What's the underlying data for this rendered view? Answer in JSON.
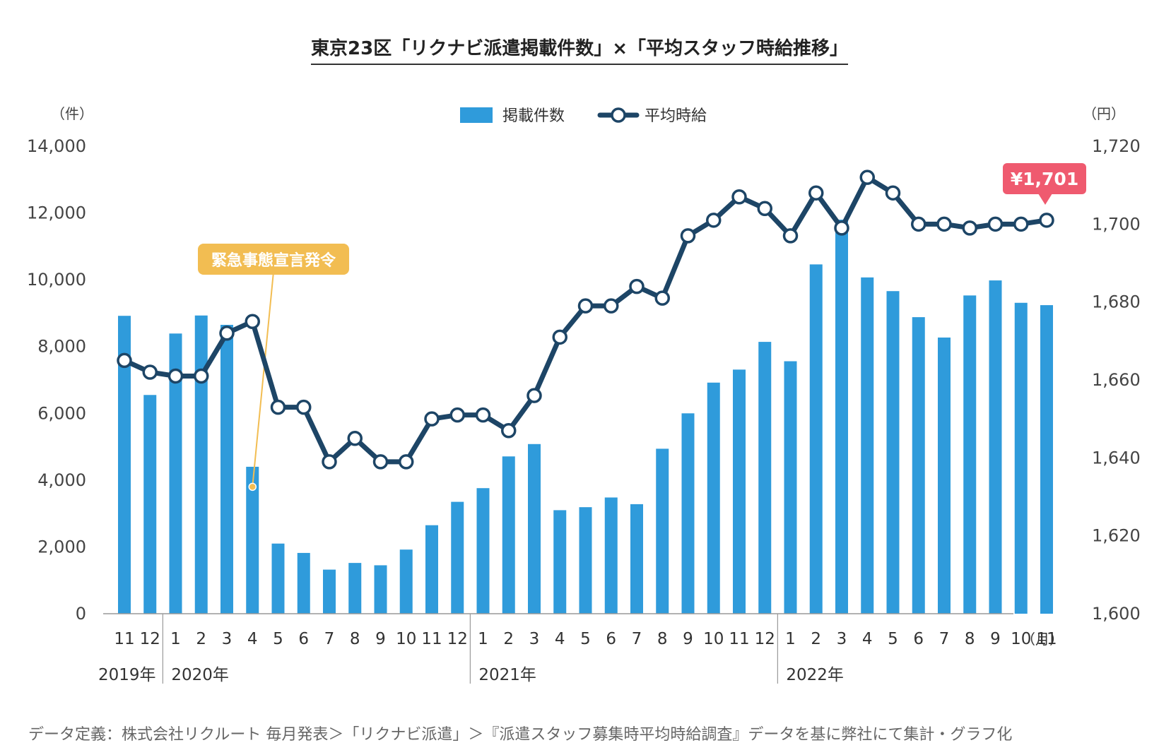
{
  "chart_data": {
    "type": "bar+line",
    "title": "東京23区「リクナビ派遣掲載件数」×「平均スタッフ時給推移」",
    "source_note": "データ定義：株式会社リクルート 毎月発表＞「リクナビ派遣」＞『派遣スタッフ募集時平均時給調査』データを基に弊社にて集計・グラフ化",
    "y_left": {
      "unit_label": "（件）",
      "min": 0,
      "max": 14000,
      "ticks": [
        "0",
        "2,000",
        "4,000",
        "6,000",
        "8,000",
        "10,000",
        "12,000",
        "14,000"
      ]
    },
    "y_right": {
      "unit_label": "（円）",
      "min": 1600,
      "max": 1720,
      "ticks": [
        "1,600",
        "1,620",
        "1,640",
        "1,660",
        "1,680",
        "1,700",
        "1,720"
      ]
    },
    "x_unit_label": "（月）",
    "months": [
      "11",
      "12",
      "1",
      "2",
      "3",
      "4",
      "5",
      "6",
      "7",
      "8",
      "9",
      "10",
      "11",
      "12",
      "1",
      "2",
      "3",
      "4",
      "5",
      "6",
      "7",
      "8",
      "9",
      "10",
      "11",
      "12",
      "1",
      "2",
      "3",
      "4",
      "5",
      "6",
      "7",
      "8",
      "9",
      "10",
      "11"
    ],
    "years": [
      {
        "label": "2019年",
        "start_index": 0
      },
      {
        "label": "2020年",
        "start_index": 2
      },
      {
        "label": "2021年",
        "start_index": 14
      },
      {
        "label": "2022年",
        "start_index": 26
      }
    ],
    "legend": {
      "bar_label": "掲載件数",
      "line_label": "平均時給",
      "placement": "top-center"
    },
    "series": [
      {
        "name": "掲載件数",
        "type": "bar",
        "axis": "left",
        "color": "#2f9bdb",
        "values": [
          8920,
          6550,
          8390,
          8930,
          8650,
          4400,
          2100,
          1820,
          1320,
          1520,
          1450,
          1920,
          2650,
          3350,
          3760,
          4710,
          5080,
          3100,
          3190,
          3480,
          3280,
          4940,
          6000,
          6920,
          7310,
          8140,
          7560,
          10460,
          11800,
          10070,
          9660,
          8880,
          8270,
          9530,
          9980,
          9310,
          9240
        ]
      },
      {
        "name": "平均時給",
        "type": "line",
        "axis": "right",
        "color": "#1d4566",
        "values": [
          1665,
          1662,
          1661,
          1661,
          1672,
          1675,
          1653,
          1653,
          1639,
          1645,
          1639,
          1639,
          1650,
          1651,
          1651,
          1647,
          1656,
          1671,
          1679,
          1679,
          1684,
          1681,
          1697,
          1701,
          1707,
          1704,
          1697,
          1708,
          1699,
          1712,
          1708,
          1700,
          1700,
          1699,
          1700,
          1700,
          1701
        ]
      }
    ],
    "annotations": [
      {
        "label": "緊急事態宣言発令",
        "index": 5,
        "color": "#f2bd52"
      },
      {
        "label": "¥1,701",
        "index": 36,
        "color": "#ef5a6f"
      }
    ],
    "grid": false
  }
}
